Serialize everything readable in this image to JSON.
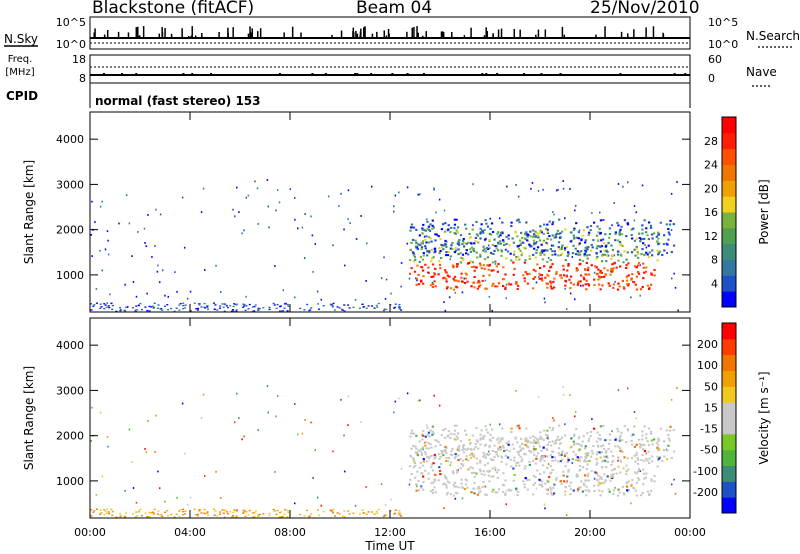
{
  "header": {
    "station": "Blackstone (fitACF)",
    "beam": "Beam 04",
    "date": "25/Nov/2010"
  },
  "param_panels": {
    "nsky_label": "N.Sky",
    "nsky_ticks": [
      "10^5",
      "10^0"
    ],
    "nsearch_label": "N.Search",
    "nsearch_ticks": [
      "10^5",
      "10^0"
    ],
    "freq_label": "Freq.",
    "freq_unit": "[MHz]",
    "freq_ticks": [
      "18",
      "8"
    ],
    "nave_label": "Nave",
    "nave_ticks": [
      "60",
      "0"
    ],
    "cpid_label": "CPID",
    "cpid_text": "normal (fast stereo) 153"
  },
  "chart_data": [
    {
      "type": "heatmap",
      "name": "power",
      "xlabel": "Time UT",
      "ylabel": "Slant Range [km]",
      "x_ticks": [
        "00:00",
        "04:00",
        "08:00",
        "12:00",
        "16:00",
        "20:00",
        "00:00"
      ],
      "y_ticks": [
        "4000",
        "3000",
        "2000",
        "1000"
      ],
      "xlim_hours": [
        0,
        24
      ],
      "ylim_km": [
        180,
        4600
      ],
      "colorbar": {
        "label": "Power [dB]",
        "ticks": [
          "28",
          "24",
          "20",
          "16",
          "12",
          "8",
          "4"
        ],
        "colors": [
          "#0000ff",
          "#1e50c8",
          "#3278a0",
          "#3c8c78",
          "#50a050",
          "#78b43c",
          "#f0d21e",
          "#f0a000",
          "#f07800",
          "#ff5000",
          "#ff1e00",
          "#ff0000"
        ]
      },
      "regions": [
        {
          "t_start": 12.75,
          "t_end": 22.6,
          "range_min_km": 650,
          "range_max_km": 1250,
          "level": "high"
        },
        {
          "t_start": 12.75,
          "t_end": 22.8,
          "range_min_km": 1250,
          "range_max_km": 2000,
          "level": "medium"
        },
        {
          "t_start": 12.75,
          "t_end": 23.4,
          "range_min_km": 1400,
          "range_max_km": 2200,
          "level": "low"
        }
      ]
    },
    {
      "type": "heatmap",
      "name": "velocity",
      "xlabel": "Time UT",
      "ylabel": "Slant Range [km]",
      "x_ticks": [
        "00:00",
        "04:00",
        "08:00",
        "12:00",
        "16:00",
        "20:00",
        "00:00"
      ],
      "y_ticks": [
        "4000",
        "3000",
        "2000",
        "1000"
      ],
      "xlim_hours": [
        0,
        24
      ],
      "ylim_km": [
        180,
        4600
      ],
      "colorbar": {
        "label": "Velocity [m s⁻¹]",
        "ticks": [
          "200",
          "100",
          "50",
          "15",
          "-15",
          "-50",
          "-100",
          "-200"
        ],
        "colors": [
          "#0000ff",
          "#1e50c8",
          "#3c8c78",
          "#50b43c",
          "#78c828",
          "#c8c8c8",
          "#c8c8c8",
          "#f0c81e",
          "#f0a000",
          "#f07800",
          "#ff3c00",
          "#ff0000"
        ]
      }
    }
  ]
}
